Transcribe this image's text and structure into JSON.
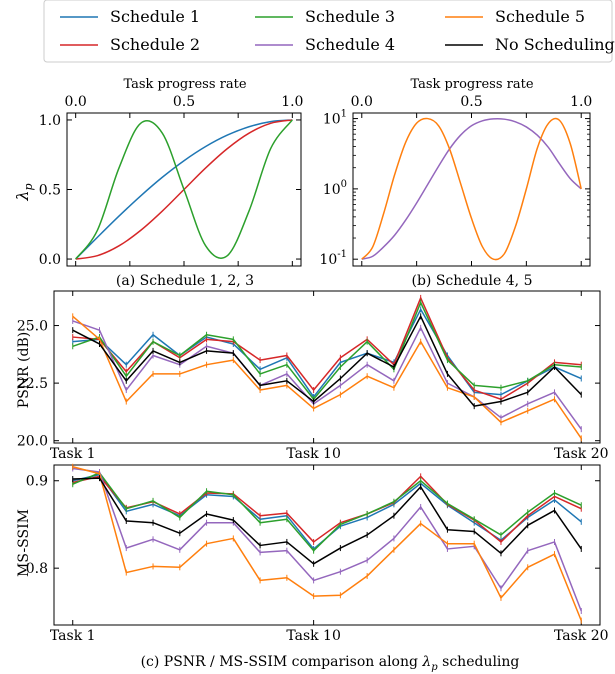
{
  "legend": {
    "entries": [
      {
        "name": "Schedule 1",
        "color": "#1f77b4"
      },
      {
        "name": "Schedule 3",
        "color": "#2ca02c"
      },
      {
        "name": "Schedule 5",
        "color": "#ff7f0e"
      },
      {
        "name": "Schedule 2",
        "color": "#d62728"
      },
      {
        "name": "Schedule 4",
        "color": "#9467bd"
      },
      {
        "name": "No Scheduling",
        "color": "#000000"
      }
    ]
  },
  "chart_data": [
    {
      "type": "line",
      "id": "schedule123",
      "caption": "(a) Schedule 1, 2, 3",
      "xlabel": "Task progress rate",
      "ylabel": "λp",
      "xlim": [
        0,
        1
      ],
      "ylim": [
        -0.05,
        1.05
      ],
      "xticks": [
        "0.0",
        "0.5",
        "1.0"
      ],
      "yticks": [
        "0.0",
        "0.5",
        "1.0"
      ],
      "x": [
        0,
        0.1,
        0.2,
        0.3,
        0.4,
        0.5,
        0.6,
        0.7,
        0.8,
        0.9,
        1.0
      ],
      "series": [
        {
          "name": "Schedule 1",
          "color": "#1f77b4",
          "values": [
            0,
            0.156,
            0.309,
            0.454,
            0.588,
            0.707,
            0.809,
            0.891,
            0.951,
            0.988,
            1.0
          ]
        },
        {
          "name": "Schedule 2",
          "color": "#d62728",
          "values": [
            0,
            0.024,
            0.095,
            0.206,
            0.345,
            0.5,
            0.655,
            0.794,
            0.905,
            0.976,
            1.0
          ]
        },
        {
          "name": "Schedule 3",
          "color": "#2ca02c",
          "values": [
            0,
            0.206,
            0.655,
            0.976,
            0.905,
            0.5,
            0.095,
            0.024,
            0.345,
            0.794,
            1.0
          ]
        }
      ]
    },
    {
      "type": "line",
      "id": "schedule45",
      "caption": "(b) Schedule 4, 5",
      "xlabel": "Task progress rate",
      "ylabel": "",
      "xlim": [
        0,
        1
      ],
      "ylim": [
        0.08,
        12
      ],
      "yscale": "log",
      "xticks": [
        "0.0",
        "0.5",
        "1.0"
      ],
      "yticks": [
        "10^-1",
        "10^0",
        "10^1"
      ],
      "x": [
        0,
        0.05,
        0.1,
        0.15,
        0.2,
        0.25,
        0.3,
        0.35,
        0.4,
        0.45,
        0.5,
        0.55,
        0.6,
        0.65,
        0.7,
        0.75,
        0.8,
        0.85,
        0.9,
        0.95,
        1.0
      ],
      "series": [
        {
          "name": "Schedule 4",
          "color": "#9467bd",
          "values": [
            0.1,
            0.11,
            0.15,
            0.22,
            0.36,
            0.63,
            1.15,
            2.1,
            3.7,
            5.8,
            7.9,
            9.3,
            9.9,
            9.8,
            9.0,
            7.6,
            5.8,
            3.9,
            2.3,
            1.4,
            1.0
          ]
        },
        {
          "name": "Schedule 5",
          "color": "#ff7f0e",
          "values": [
            0.1,
            0.15,
            0.45,
            1.6,
            4.6,
            8.6,
            10.0,
            7.9,
            3.7,
            1.2,
            0.38,
            0.15,
            0.1,
            0.12,
            0.29,
            1.0,
            3.8,
            8.5,
            9.5,
            4.4,
            1.0
          ]
        }
      ]
    },
    {
      "type": "line",
      "id": "psnr",
      "caption": "",
      "xlabel": "",
      "ylabel": "PSNR (dB)",
      "ylim": [
        19.9,
        26.5
      ],
      "xticks": [
        "Task 1",
        "Task 10",
        "Task 20"
      ],
      "yticks": [
        "20.0",
        "22.5",
        "25.0"
      ],
      "x": [
        1,
        2,
        3,
        4,
        5,
        6,
        7,
        8,
        9,
        10,
        11,
        12,
        13,
        14,
        15,
        16,
        17,
        18,
        19,
        20
      ],
      "series": [
        {
          "name": "Schedule 1",
          "color": "#1f77b4",
          "values": [
            24.3,
            24.4,
            23.3,
            24.6,
            23.7,
            24.5,
            24.2,
            23.1,
            23.6,
            21.9,
            23.4,
            23.8,
            23.4,
            25.7,
            23.7,
            22.1,
            22.0,
            22.6,
            23.2,
            22.7
          ]
        },
        {
          "name": "Schedule 2",
          "color": "#d62728",
          "values": [
            24.5,
            24.4,
            23.0,
            24.3,
            23.6,
            24.4,
            24.3,
            23.5,
            23.7,
            22.2,
            23.6,
            24.4,
            23.3,
            26.2,
            23.6,
            22.2,
            21.8,
            22.5,
            23.4,
            23.3
          ]
        },
        {
          "name": "Schedule 3",
          "color": "#2ca02c",
          "values": [
            24.1,
            24.5,
            22.8,
            24.3,
            23.7,
            24.6,
            24.4,
            22.9,
            23.3,
            21.8,
            23.2,
            24.3,
            23.1,
            26.0,
            23.5,
            22.4,
            22.3,
            22.6,
            23.3,
            23.2
          ]
        },
        {
          "name": "Schedule 4",
          "color": "#9467bd",
          "values": [
            25.2,
            24.8,
            22.2,
            23.7,
            23.3,
            24.1,
            23.8,
            22.4,
            22.9,
            21.6,
            22.4,
            23.3,
            22.6,
            24.9,
            22.5,
            21.9,
            21.0,
            21.6,
            22.1,
            20.5
          ]
        },
        {
          "name": "Schedule 5",
          "color": "#ff7f0e",
          "values": [
            25.4,
            24.4,
            21.7,
            22.9,
            22.9,
            23.3,
            23.5,
            22.2,
            22.4,
            21.4,
            22.0,
            22.8,
            22.3,
            24.3,
            22.3,
            21.9,
            20.8,
            21.3,
            21.8,
            20.1
          ]
        },
        {
          "name": "No Scheduling",
          "color": "#000000",
          "values": [
            24.8,
            24.2,
            22.6,
            23.9,
            23.4,
            23.9,
            23.8,
            22.4,
            22.6,
            21.7,
            22.7,
            23.8,
            23.2,
            25.4,
            22.9,
            21.5,
            21.7,
            22.1,
            23.2,
            22.0
          ]
        }
      ]
    },
    {
      "type": "line",
      "id": "msssim",
      "caption": "(c) PSNR / MS-SSIM comparison along λp scheduling",
      "xlabel": "",
      "ylabel": "MS-SSIM",
      "ylim": [
        0.735,
        0.918
      ],
      "xticks": [
        "Task 1",
        "Task 10",
        "Task 20"
      ],
      "yticks": [
        "0.8",
        "0.9"
      ],
      "x": [
        1,
        2,
        3,
        4,
        5,
        6,
        7,
        8,
        9,
        10,
        11,
        12,
        13,
        14,
        15,
        16,
        17,
        18,
        19,
        20
      ],
      "series": [
        {
          "name": "Schedule 1",
          "color": "#1f77b4",
          "values": [
            0.9,
            0.907,
            0.865,
            0.873,
            0.86,
            0.884,
            0.882,
            0.856,
            0.86,
            0.822,
            0.848,
            0.858,
            0.873,
            0.897,
            0.872,
            0.852,
            0.832,
            0.858,
            0.878,
            0.853
          ]
        },
        {
          "name": "Schedule 2",
          "color": "#d62728",
          "values": [
            0.898,
            0.905,
            0.869,
            0.876,
            0.862,
            0.886,
            0.885,
            0.86,
            0.863,
            0.83,
            0.852,
            0.862,
            0.875,
            0.905,
            0.873,
            0.855,
            0.83,
            0.86,
            0.882,
            0.868
          ]
        },
        {
          "name": "Schedule 3",
          "color": "#2ca02c",
          "values": [
            0.896,
            0.909,
            0.868,
            0.877,
            0.858,
            0.888,
            0.884,
            0.852,
            0.856,
            0.82,
            0.85,
            0.862,
            0.876,
            0.9,
            0.874,
            0.856,
            0.838,
            0.864,
            0.886,
            0.872
          ]
        },
        {
          "name": "Schedule 4",
          "color": "#9467bd",
          "values": [
            0.914,
            0.91,
            0.823,
            0.833,
            0.821,
            0.852,
            0.852,
            0.818,
            0.82,
            0.786,
            0.796,
            0.809,
            0.834,
            0.87,
            0.822,
            0.825,
            0.777,
            0.82,
            0.83,
            0.751
          ]
        },
        {
          "name": "Schedule 5",
          "color": "#ff7f0e",
          "values": [
            0.916,
            0.908,
            0.795,
            0.802,
            0.801,
            0.828,
            0.834,
            0.786,
            0.789,
            0.768,
            0.769,
            0.791,
            0.821,
            0.851,
            0.828,
            0.828,
            0.766,
            0.801,
            0.816,
            0.74
          ]
        },
        {
          "name": "No Scheduling",
          "color": "#000000",
          "values": [
            0.902,
            0.903,
            0.854,
            0.852,
            0.84,
            0.862,
            0.855,
            0.826,
            0.83,
            0.805,
            0.823,
            0.838,
            0.86,
            0.893,
            0.844,
            0.842,
            0.817,
            0.849,
            0.866,
            0.822
          ]
        }
      ]
    }
  ]
}
